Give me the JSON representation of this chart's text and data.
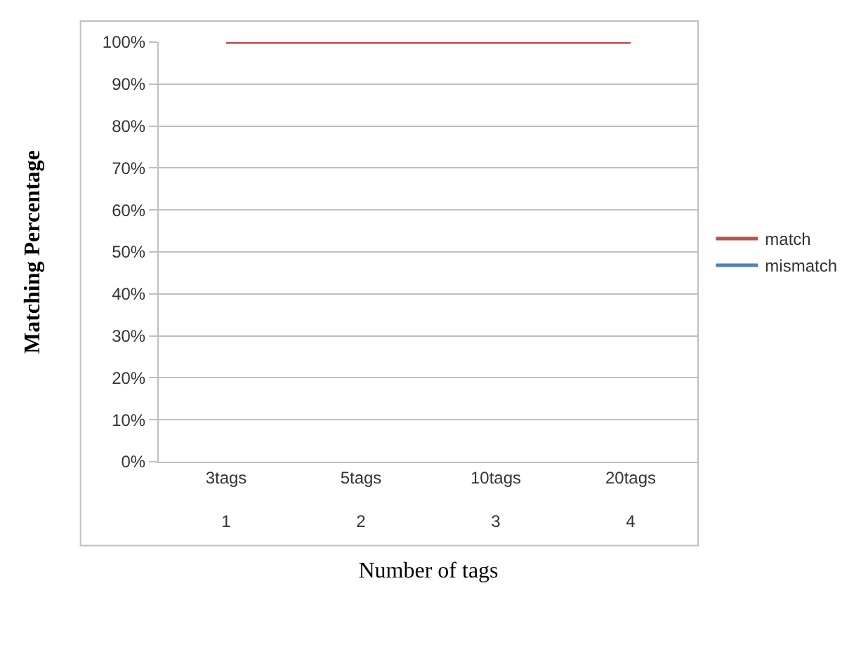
{
  "chart_data": {
    "type": "line",
    "xlabel": "Number of tags",
    "ylabel": "Matching Percentage",
    "categories": [
      "3tags\n1",
      "5tags\n2",
      "10tags\n3",
      "20tags\n4"
    ],
    "series": [
      {
        "name": "match",
        "color": "#c0504d",
        "values": [
          100,
          100,
          100,
          100
        ]
      },
      {
        "name": "mismatch",
        "color": "#4f81bd",
        "values": [
          null,
          null,
          null,
          null
        ]
      }
    ],
    "ylim": [
      0,
      100
    ],
    "yticks": [
      {
        "value": 0,
        "label": "0%"
      },
      {
        "value": 10,
        "label": "10%"
      },
      {
        "value": 20,
        "label": "20%"
      },
      {
        "value": 30,
        "label": "30%"
      },
      {
        "value": 40,
        "label": "40%"
      },
      {
        "value": 50,
        "label": "50%"
      },
      {
        "value": 60,
        "label": "60%"
      },
      {
        "value": 70,
        "label": "70%"
      },
      {
        "value": 80,
        "label": "80%"
      },
      {
        "value": 90,
        "label": "90%"
      },
      {
        "value": 100,
        "label": "100%"
      }
    ],
    "grid": "y",
    "legend": "right",
    "marker": "none",
    "line_style": "solid"
  }
}
